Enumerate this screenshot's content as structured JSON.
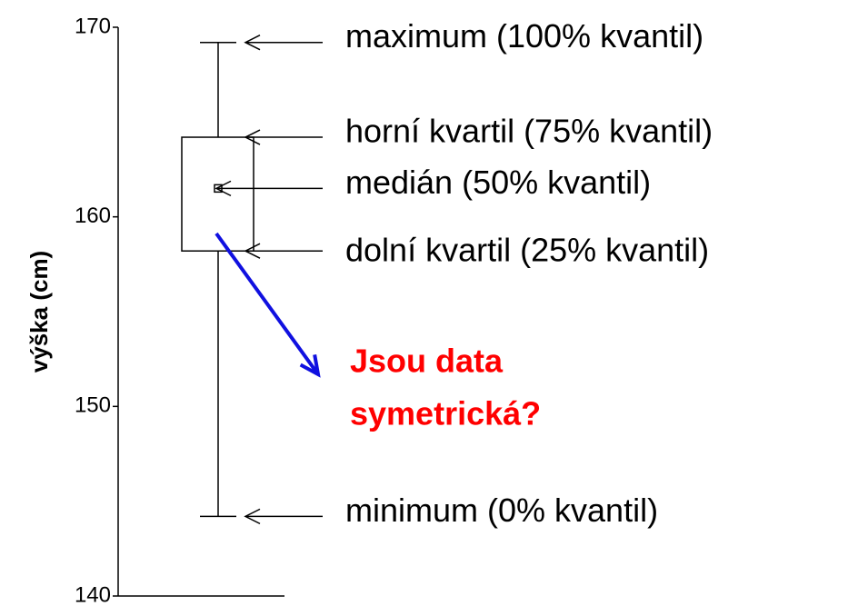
{
  "chart_data": {
    "type": "box",
    "ylabel": "výška (cm)",
    "ylim": [
      140,
      170
    ],
    "yticks": [
      140,
      150,
      160,
      170
    ],
    "box": {
      "min": 144.2,
      "q1": 158.2,
      "median": 161.5,
      "q3": 164.2,
      "max": 169.2
    },
    "annotations": [
      {
        "text": "maximum (100% kvantil)",
        "stat": "max"
      },
      {
        "text": "horní kvartil (75% kvantil)",
        "stat": "q3"
      },
      {
        "text": "medián (50% kvantil)",
        "stat": "median"
      },
      {
        "text": "dolní kvartil (25% kvantil)",
        "stat": "q1"
      },
      {
        "text": "minimum (0% kvantil)",
        "stat": "min"
      }
    ],
    "question": [
      "Jsou data",
      "symetrická?"
    ],
    "question_color": "#ff0000",
    "arrow_color": "#1010e0"
  }
}
